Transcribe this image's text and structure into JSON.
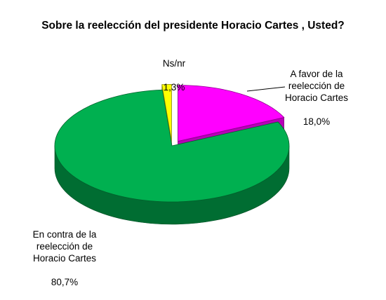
{
  "chart_data": {
    "type": "pie",
    "title": "Sobre la reelección del presidente Horacio Cartes , Usted?",
    "slices": [
      {
        "label": "A favor de la\nreelección de\nHoracio Cartes",
        "value": 18.0,
        "value_label": "18,0%",
        "color": "#ff00ff"
      },
      {
        "label": "En contra de la\nreelección de\nHoracio Cartes",
        "value": 80.7,
        "value_label": "80,7%",
        "color": "#00b050"
      },
      {
        "label": "Ns/nr",
        "value": 1.3,
        "value_label": "1,3%",
        "color": "#ffff00"
      }
    ],
    "style": "3d-exploded",
    "legend": "none"
  }
}
